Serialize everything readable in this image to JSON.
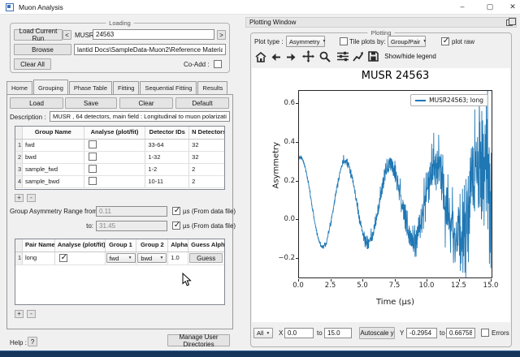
{
  "window": {
    "title": "Muon Analysis",
    "minimize": "–",
    "maximize": "▢",
    "close": "✕"
  },
  "loading": {
    "legend": "Loading",
    "load_current_run": "Load Current Run",
    "prev": "<",
    "instrument": "MUSR",
    "run_number": "24563",
    "next": ">",
    "browse": "Browse",
    "file_path": "lantid Docs\\SampleData-Muon2\\Reference Material\\MUSR00024563.nxs",
    "clear_all": "Clear All",
    "coadd_label": "Co-Add :"
  },
  "tabs": [
    {
      "label": "Home"
    },
    {
      "label": "Grouping"
    },
    {
      "label": "Phase Table"
    },
    {
      "label": "Fitting"
    },
    {
      "label": "Sequential Fitting"
    },
    {
      "label": "Results"
    }
  ],
  "grouping": {
    "load": "Load",
    "save": "Save",
    "clear": "Clear",
    "default": "Default",
    "description_label": "Description :",
    "description": "MUSR , 64 detectors, main field : Longitudinal to muon polarization",
    "group_table": {
      "col_name": "Group Name",
      "col_analyse": "Analyse (plot/fit)",
      "col_ids": "Detector IDs",
      "col_n": "N Detectors",
      "rows": [
        {
          "n": "1",
          "name": "fwd",
          "ids": "33-64",
          "count": "32"
        },
        {
          "n": "2",
          "name": "bwd",
          "ids": "1-32",
          "count": "32"
        },
        {
          "n": "3",
          "name": "sample_fwd",
          "ids": "1-2",
          "count": "2"
        },
        {
          "n": "4",
          "name": "sample_bwd",
          "ids": "10-11",
          "count": "2"
        }
      ]
    },
    "add": "+",
    "remove": "-",
    "range_from_label": "Group Asymmetry Range from:",
    "range_from": "0.11",
    "range_to_label": "to:",
    "range_to": "31.45",
    "range_unit": "µs (From data file)",
    "pair_table": {
      "col_pair": "Pair Name",
      "col_analyse": "Analyse (plot/fit)",
      "col_g1": "Group 1",
      "col_g2": "Group 2",
      "col_alpha": "Alpha",
      "col_guess": "Guess Alpha",
      "rows": [
        {
          "n": "1",
          "name": "long",
          "group1": "fwd",
          "group2": "bwd",
          "alpha": "1.0",
          "guess": "Guess"
        }
      ]
    }
  },
  "footer": {
    "help_label": "Help :",
    "help_button": "?",
    "manage_dirs": "Manage User Directories"
  },
  "plotting": {
    "dock_title": "Plotting Window",
    "legend": "Plotting",
    "plot_type_label": "Plot type :",
    "plot_type": "Asymmetry",
    "tile_label": "Tile plots by:",
    "tile_by": "Group/Pair",
    "plot_raw_label": "plot raw",
    "legend_toggle": "Show/hide legend",
    "bottom": {
      "all": "All",
      "x_label": "X",
      "x_from": "0.0",
      "to_a": "to",
      "x_to": "15.0",
      "autoscale": "Autoscale y",
      "y_label": "Y",
      "y_from": "-0.2954",
      "to_b": "to",
      "y_to": "0.66758",
      "errors_label": "Errors"
    }
  },
  "chart_data": {
    "type": "line",
    "title": "MUSR 24563",
    "xlabel": "Time (µs)",
    "ylabel": "Asymmetry",
    "xlim": [
      0.0,
      15.0
    ],
    "ylim": [
      -0.2954,
      0.66758
    ],
    "xticks": [
      0.0,
      2.5,
      5.0,
      7.5,
      10.0,
      12.5,
      15.0
    ],
    "yticks": [
      0.6,
      0.4,
      0.2,
      0.0,
      -0.2
    ],
    "grid": false,
    "legend_position": "upper right",
    "series": [
      {
        "name": "MUSR24563; long",
        "color": "#1f77b4",
        "model": "baseline + amplitude*exp(-decay*t)*cos(2*pi*(t-phase)/period) + gaussian_noise(sigma0*exp(t/noise_tau))",
        "baseline": 0.09,
        "amplitude": 0.235,
        "decay": 0.02,
        "period": 3.52,
        "phase": 0.1,
        "sigma0": 0.0045,
        "noise_tau": 4.0,
        "t_start": 0.0,
        "t_end": 15.0,
        "dt": 0.016,
        "seed": 7
      }
    ],
    "approx_extrema": [
      [
        0.1,
        0.32
      ],
      [
        1.9,
        -0.13
      ],
      [
        3.6,
        0.32
      ],
      [
        5.4,
        -0.12
      ],
      [
        7.2,
        0.31
      ],
      [
        9.0,
        -0.11
      ],
      [
        10.8,
        0.28
      ],
      [
        12.4,
        -0.15
      ],
      [
        14.0,
        0.45
      ],
      [
        15.0,
        0.43
      ]
    ]
  }
}
